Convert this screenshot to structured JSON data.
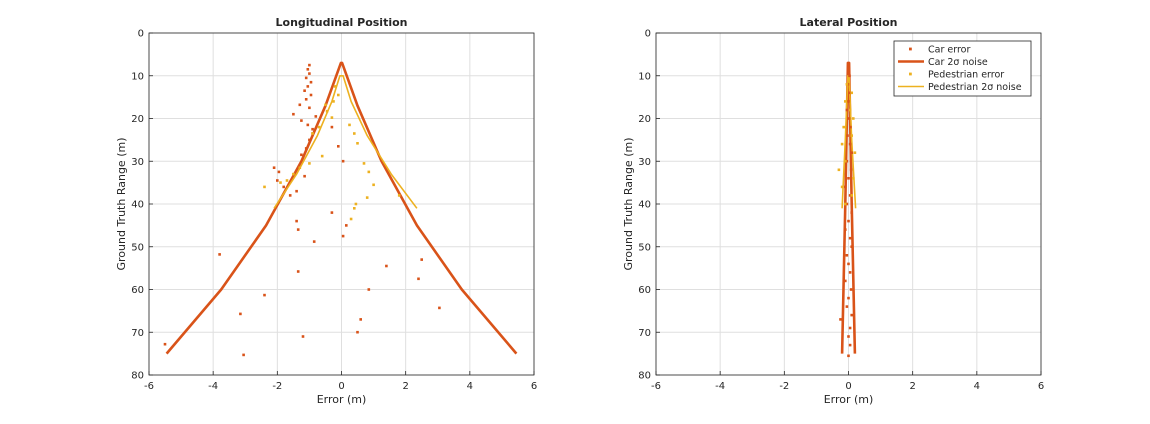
{
  "chart_data": [
    {
      "type": "scatter",
      "title": "Longitudinal Position",
      "xlabel": "Error (m)",
      "ylabel": "Ground Truth Range (m)",
      "xlim": [
        -6,
        6
      ],
      "ylim": [
        0,
        80
      ],
      "y_reversed": true,
      "xticks": [
        "-6",
        "-4",
        "-2",
        "0",
        "2",
        "4",
        "6"
      ],
      "yticks": [
        "0",
        "10",
        "20",
        "30",
        "40",
        "50",
        "60",
        "70",
        "80"
      ],
      "grid": true,
      "legend": null,
      "series": [
        {
          "kind": "points",
          "color": "#d95319",
          "points": [
            [
              -1.0,
              7.5
            ],
            [
              -1.05,
              8.5
            ],
            [
              -1.0,
              9.5
            ],
            [
              -1.1,
              10.5
            ],
            [
              -0.95,
              11.5
            ],
            [
              -1.05,
              12.5
            ],
            [
              -1.15,
              13.5
            ],
            [
              -0.95,
              14.5
            ],
            [
              -1.1,
              15.5
            ],
            [
              -1.3,
              16.8
            ],
            [
              -1.0,
              17.5
            ],
            [
              -0.8,
              19.5
            ],
            [
              -1.25,
              20.5
            ],
            [
              -1.05,
              21.5
            ],
            [
              -0.9,
              23.5
            ],
            [
              -1.0,
              25.0
            ],
            [
              -1.1,
              27.0
            ],
            [
              -1.25,
              28.5
            ],
            [
              -2.1,
              31.5
            ],
            [
              -1.95,
              32.5
            ],
            [
              -2.0,
              34.5
            ],
            [
              -1.8,
              36.0
            ],
            [
              -1.4,
              37.0
            ],
            [
              -1.6,
              38.0
            ],
            [
              -1.4,
              44.0
            ],
            [
              -1.35,
              46.0
            ],
            [
              -0.85,
              48.8
            ],
            [
              -1.35,
              55.8
            ],
            [
              -1.2,
              71.0
            ],
            [
              -3.8,
              51.8
            ],
            [
              -2.4,
              61.3
            ],
            [
              -3.15,
              65.7
            ],
            [
              -3.05,
              75.3
            ],
            [
              -5.5,
              72.8
            ],
            [
              -0.3,
              22.0
            ],
            [
              -0.1,
              26.5
            ],
            [
              0.05,
              30.0
            ],
            [
              0.15,
              45.0
            ],
            [
              0.05,
              47.5
            ],
            [
              -0.3,
              42.0
            ],
            [
              0.5,
              70.0
            ],
            [
              0.6,
              67.0
            ],
            [
              0.85,
              60.0
            ],
            [
              1.4,
              54.5
            ],
            [
              2.4,
              57.5
            ],
            [
              2.5,
              53.0
            ],
            [
              3.05,
              64.3
            ],
            [
              -0.9,
              22.5
            ],
            [
              -1.5,
              19.0
            ],
            [
              -1.15,
              33.5
            ]
          ]
        },
        {
          "kind": "points",
          "color": "#edb120",
          "points": [
            [
              -0.2,
              12.5
            ],
            [
              -0.1,
              14.5
            ],
            [
              -0.25,
              16.0
            ],
            [
              -0.5,
              16.8
            ],
            [
              -0.45,
              18.3
            ],
            [
              -0.3,
              19.8
            ],
            [
              -0.7,
              22.0
            ],
            [
              -0.9,
              23.5
            ],
            [
              -0.6,
              28.8
            ],
            [
              -1.0,
              30.5
            ],
            [
              -1.3,
              31.5
            ],
            [
              -1.5,
              33.0
            ],
            [
              -1.7,
              34.5
            ],
            [
              -1.9,
              35.0
            ],
            [
              -2.4,
              36.0
            ],
            [
              0.25,
              21.5
            ],
            [
              0.4,
              23.5
            ],
            [
              0.5,
              25.8
            ],
            [
              0.7,
              30.5
            ],
            [
              0.85,
              32.5
            ],
            [
              0.8,
              38.5
            ],
            [
              0.45,
              40.0
            ],
            [
              0.4,
              41.0
            ],
            [
              1.8,
              38.0
            ],
            [
              0.3,
              43.5
            ],
            [
              1.0,
              35.5
            ]
          ]
        },
        {
          "kind": "line",
          "color": "#d95319",
          "width": 2.6,
          "points": [
            [
              -5.45,
              75.0
            ],
            [
              -3.75,
              60.0
            ],
            [
              -2.35,
              45.0
            ],
            [
              -1.25,
              30.0
            ],
            [
              -0.5,
              17.0
            ],
            [
              -0.02,
              7.0
            ],
            [
              0.02,
              7.0
            ],
            [
              0.5,
              17.0
            ],
            [
              1.25,
              30.0
            ],
            [
              2.35,
              45.0
            ],
            [
              3.75,
              60.0
            ],
            [
              5.45,
              75.0
            ]
          ]
        },
        {
          "kind": "line",
          "color": "#edb120",
          "width": 1.6,
          "points": [
            [
              -2.1,
              41.0
            ],
            [
              -1.4,
              33.0
            ],
            [
              -0.75,
              24.0
            ],
            [
              -0.3,
              16.0
            ],
            [
              -0.05,
              10.0
            ],
            [
              0.05,
              10.0
            ],
            [
              0.3,
              16.0
            ],
            [
              0.8,
              24.0
            ],
            [
              1.55,
              33.0
            ],
            [
              2.35,
              41.0
            ]
          ]
        }
      ]
    },
    {
      "type": "scatter",
      "title": "Lateral Position",
      "xlabel": "Error (m)",
      "ylabel": "Ground Truth Range (m)",
      "xlim": [
        -6,
        6
      ],
      "ylim": [
        0,
        80
      ],
      "y_reversed": true,
      "xticks": [
        "-6",
        "-4",
        "-2",
        "0",
        "2",
        "4",
        "6"
      ],
      "yticks": [
        "0",
        "10",
        "20",
        "30",
        "40",
        "50",
        "60",
        "70",
        "80"
      ],
      "grid": true,
      "legend": {
        "position": "top-right",
        "entries": [
          {
            "label": "Car error",
            "color": "#d95319",
            "marker": "point"
          },
          {
            "label": "Car 2σ noise",
            "color": "#d95319",
            "marker": "line"
          },
          {
            "label": "Pedestrian error",
            "color": "#edb120",
            "marker": "point"
          },
          {
            "label": "Pedestrian 2σ noise",
            "color": "#edb120",
            "marker": "line"
          }
        ]
      },
      "series": [
        {
          "kind": "points",
          "color": "#d95319",
          "points": [
            [
              0.0,
              8.0
            ],
            [
              0.03,
              10.0
            ],
            [
              -0.02,
              12.0
            ],
            [
              0.05,
              14.0
            ],
            [
              0.0,
              16.0
            ],
            [
              -0.05,
              18.0
            ],
            [
              0.02,
              20.0
            ],
            [
              0.06,
              22.0
            ],
            [
              -0.03,
              24.0
            ],
            [
              0.05,
              26.0
            ],
            [
              0.1,
              28.0
            ],
            [
              -0.05,
              30.0
            ],
            [
              0.08,
              32.0
            ],
            [
              0.0,
              34.0
            ],
            [
              -0.1,
              36.0
            ],
            [
              0.05,
              38.0
            ],
            [
              -0.05,
              40.0
            ],
            [
              0.1,
              42.0
            ],
            [
              0.0,
              44.0
            ],
            [
              -0.1,
              46.0
            ],
            [
              0.05,
              48.0
            ],
            [
              0.1,
              50.0
            ],
            [
              -0.05,
              52.0
            ],
            [
              0.0,
              54.0
            ],
            [
              0.05,
              56.0
            ],
            [
              -0.1,
              58.0
            ],
            [
              0.08,
              60.0
            ],
            [
              0.0,
              62.0
            ],
            [
              -0.05,
              64.0
            ],
            [
              0.1,
              66.0
            ],
            [
              -0.25,
              67.0
            ],
            [
              0.05,
              69.0
            ],
            [
              0.0,
              71.0
            ],
            [
              0.05,
              73.0
            ],
            [
              0.0,
              75.5
            ]
          ]
        },
        {
          "kind": "points",
          "color": "#edb120",
          "points": [
            [
              -0.05,
              12.0
            ],
            [
              0.1,
              14.0
            ],
            [
              -0.1,
              16.0
            ],
            [
              0.05,
              18.0
            ],
            [
              0.15,
              20.0
            ],
            [
              -0.15,
              22.0
            ],
            [
              0.1,
              24.0
            ],
            [
              -0.2,
              26.0
            ],
            [
              0.2,
              28.0
            ],
            [
              -0.1,
              30.0
            ],
            [
              -0.3,
              32.0
            ],
            [
              0.15,
              34.0
            ],
            [
              -0.2,
              36.0
            ],
            [
              0.1,
              38.0
            ],
            [
              -0.1,
              40.0
            ]
          ]
        },
        {
          "kind": "line",
          "color": "#d95319",
          "width": 2.6,
          "points": [
            [
              -0.2,
              75.0
            ],
            [
              -0.1,
              40.0
            ],
            [
              -0.02,
              7.0
            ],
            [
              0.02,
              7.0
            ],
            [
              0.1,
              40.0
            ],
            [
              0.2,
              75.0
            ]
          ]
        },
        {
          "kind": "line",
          "color": "#edb120",
          "width": 1.6,
          "points": [
            [
              -0.2,
              41.0
            ],
            [
              -0.1,
              25.0
            ],
            [
              -0.02,
              10.0
            ],
            [
              0.02,
              10.0
            ],
            [
              0.1,
              25.0
            ],
            [
              0.22,
              41.0
            ]
          ]
        }
      ]
    }
  ]
}
